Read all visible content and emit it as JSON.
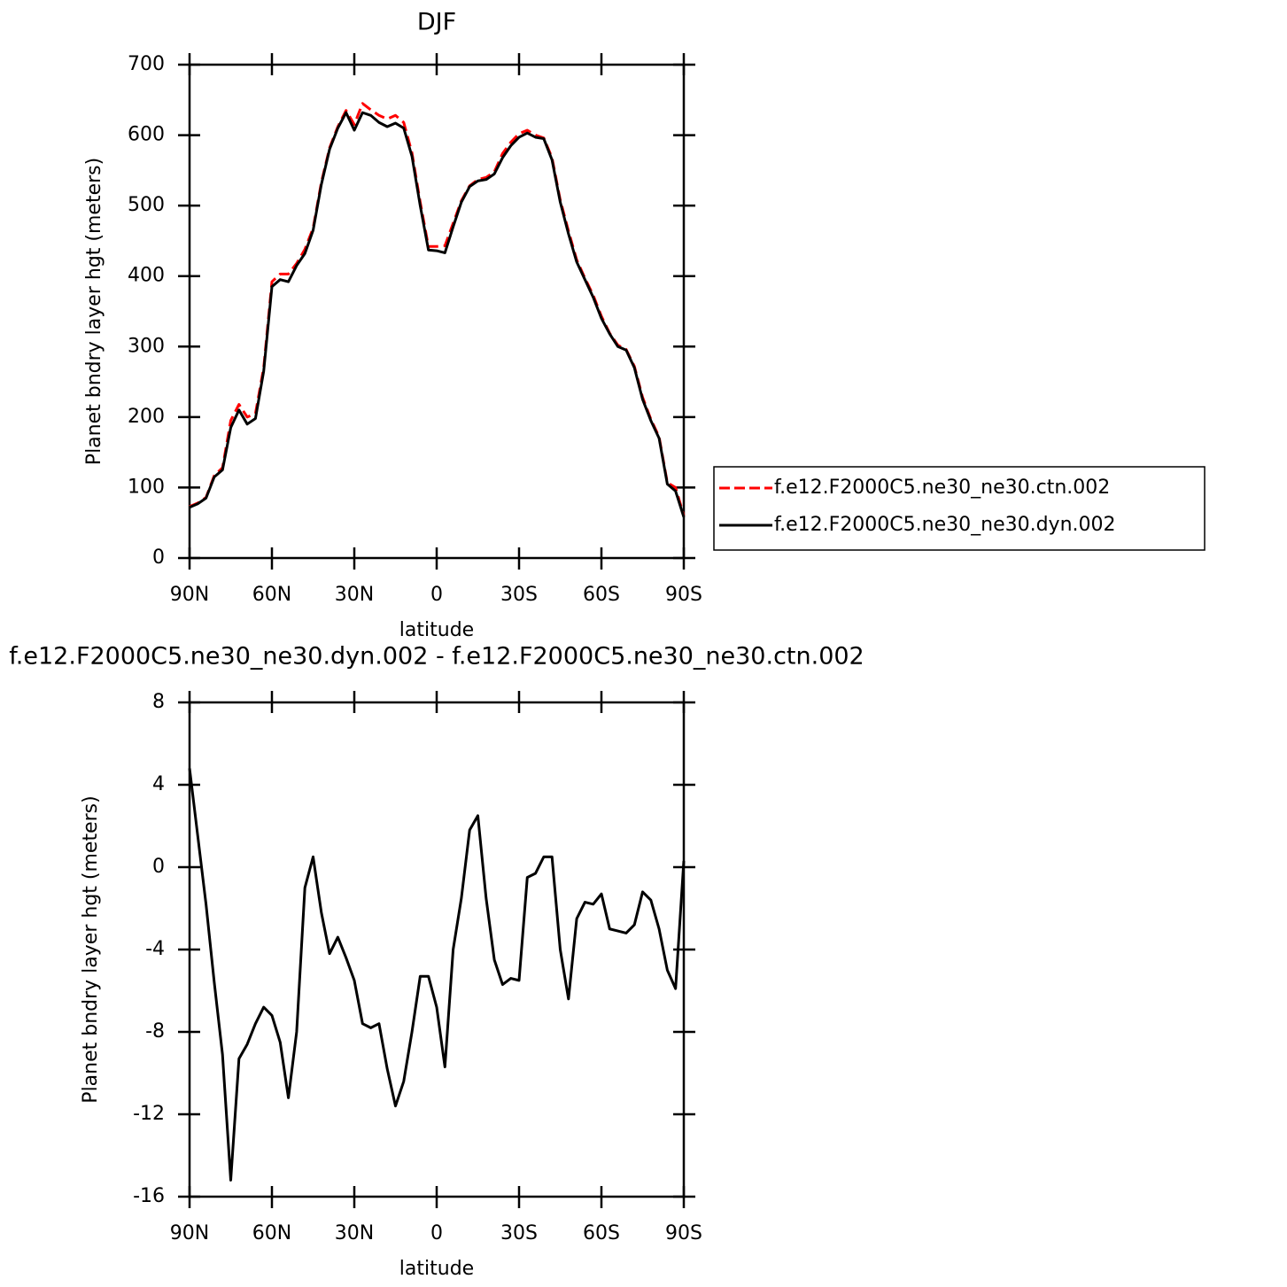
{
  "chart_data": [
    {
      "type": "line",
      "title": "DJF",
      "xlabel": "latitude",
      "ylabel": "Planet bndry layer hgt (meters)",
      "x": [
        90,
        87,
        84,
        81,
        78,
        75,
        72,
        69,
        66,
        63,
        60,
        57,
        54,
        51,
        48,
        45,
        42,
        39,
        36,
        33,
        30,
        27,
        24,
        21,
        18,
        15,
        12,
        9,
        6,
        3,
        0,
        -3,
        -6,
        -9,
        -12,
        -15,
        -18,
        -21,
        -24,
        -27,
        -30,
        -33,
        -36,
        -39,
        -42,
        -45,
        -48,
        -51,
        -54,
        -57,
        -60,
        -63,
        -66,
        -69,
        -72,
        -75,
        -78,
        -81,
        -84,
        -87,
        -90
      ],
      "series": [
        {
          "name": "f.e12.F2000C5.ne30_ne30.ctn.002",
          "color": "#ff0000",
          "line_style": "dashed",
          "values": [
            73,
            78,
            86,
            117,
            128,
            195,
            218,
            200,
            205,
            270,
            392,
            403,
            403,
            418,
            438,
            468,
            533,
            582,
            612,
            635,
            615,
            645,
            636,
            628,
            623,
            628,
            618,
            575,
            505,
            442,
            442,
            443,
            475,
            507,
            528,
            537,
            540,
            548,
            574,
            590,
            602,
            607,
            600,
            596,
            568,
            508,
            464,
            423,
            397,
            373,
            343,
            319,
            302,
            296,
            272,
            228,
            197,
            172,
            107,
            100,
            60
          ]
        },
        {
          "name": "f.e12.F2000C5.ne30_ne30.dyn.002",
          "color": "#000000",
          "line_style": "solid",
          "values": [
            72,
            77,
            85,
            115,
            125,
            185,
            210,
            190,
            198,
            265,
            385,
            395,
            392,
            415,
            432,
            465,
            530,
            580,
            610,
            632,
            607,
            632,
            628,
            618,
            612,
            617,
            610,
            570,
            500,
            437,
            436,
            433,
            470,
            505,
            527,
            535,
            537,
            545,
            568,
            585,
            597,
            603,
            597,
            595,
            565,
            505,
            460,
            420,
            395,
            370,
            340,
            318,
            300,
            295,
            270,
            225,
            195,
            170,
            105,
            95,
            58
          ]
        }
      ],
      "xlim": [
        90,
        -90
      ],
      "xticks": [
        {
          "value": 90,
          "label": "90N"
        },
        {
          "value": 60,
          "label": "60N"
        },
        {
          "value": 30,
          "label": "30N"
        },
        0,
        {
          "value": -30,
          "label": "30S"
        },
        {
          "value": -60,
          "label": "60S"
        },
        {
          "value": -90,
          "label": "90S"
        }
      ],
      "ylim": [
        0,
        700
      ],
      "yticks": [
        0,
        100,
        200,
        300,
        400,
        500,
        600,
        700
      ],
      "legend": "right"
    },
    {
      "type": "line",
      "title": "f.e12.F2000C5.ne30_ne30.dyn.002 - f.e12.F2000C5.ne30_ne30.ctn.002",
      "xlabel": "latitude",
      "ylabel": "Planet bndry layer hgt (meters)",
      "color": "#000000",
      "x": [
        90,
        87,
        84,
        81,
        78,
        75,
        72,
        69,
        66,
        63,
        60,
        57,
        54,
        51,
        48,
        45,
        42,
        39,
        36,
        33,
        30,
        27,
        24,
        21,
        18,
        15,
        12,
        9,
        6,
        3,
        0,
        -3,
        -6,
        -9,
        -12,
        -15,
        -18,
        -21,
        -24,
        -27,
        -30,
        -33,
        -36,
        -39,
        -42,
        -45,
        -48,
        -51,
        -54,
        -57,
        -60,
        -63,
        -66,
        -69,
        -72,
        -75,
        -78,
        -81,
        -84,
        -87,
        -90
      ],
      "values": [
        4.8,
        1.5,
        -1.8,
        -5.6,
        -9.1,
        -15.2,
        -9.3,
        -8.6,
        -7.6,
        -6.8,
        -7.2,
        -8.5,
        -11.2,
        -8,
        -1.0,
        0.5,
        -2.2,
        -4.2,
        -3.4,
        -4.4,
        -5.5,
        -7.6,
        -7.8,
        -7.6,
        -9.8,
        -11.6,
        -10.4,
        -8,
        -5.3,
        -5.3,
        -6.8,
        -9.7,
        -4,
        -1.5,
        1.8,
        2.5,
        -1.5,
        -4.5,
        -5.7,
        -5.4,
        -5.5,
        -0.5,
        -0.3,
        0.5,
        0.5,
        -4,
        -6.4,
        -2.5,
        -1.7,
        -1.8,
        -1.3,
        -3,
        -3.1,
        -3.2,
        -2.8,
        -1.2,
        -1.6,
        -3.0,
        -5.0,
        -5.9,
        0.3
      ],
      "xlim": [
        90,
        -90
      ],
      "xticks": [
        {
          "value": 90,
          "label": "90N"
        },
        {
          "value": 60,
          "label": "60N"
        },
        {
          "value": 30,
          "label": "30N"
        },
        0,
        {
          "value": -30,
          "label": "30S"
        },
        {
          "value": -60,
          "label": "60S"
        },
        {
          "value": -90,
          "label": "90S"
        }
      ],
      "ylim": [
        -16,
        8
      ],
      "yticks": [
        -16,
        -12,
        -8,
        -4,
        0,
        4,
        8
      ]
    }
  ]
}
